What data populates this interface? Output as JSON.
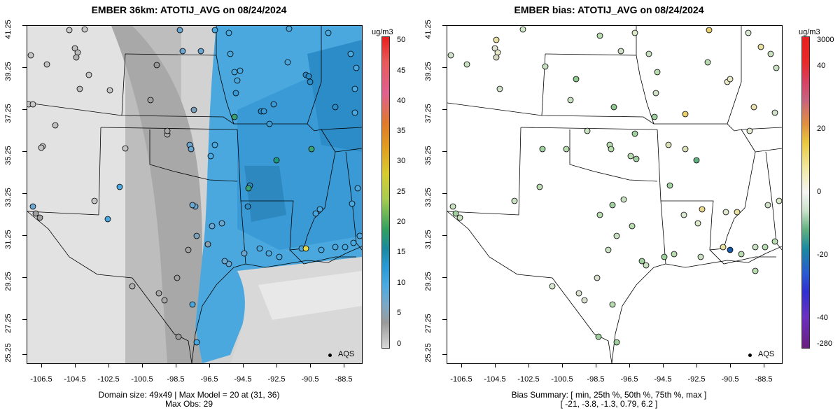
{
  "left": {
    "title": "EMBER 36km: ATOTIJ_AVG on 08/24/2024",
    "xticks": [
      "-106.5",
      "-104.5",
      "-102.5",
      "-100.5",
      "-98.5",
      "-96.5",
      "-94.5",
      "-92.5",
      "-90.5",
      "-88.5"
    ],
    "yticks": [
      "41.25",
      "39.25",
      "37.25",
      "35.25",
      "33.25",
      "31.25",
      "29.25",
      "27.25",
      "25.25"
    ],
    "summary_line1": "Domain size: 49x49 | Max Model = 20 at (31, 36)",
    "summary_line2": "Max Obs: 29",
    "colorbar_unit": "ug/m3",
    "colorbar_labels": [
      "50",
      "45",
      "40",
      "35",
      "30",
      "25",
      "20",
      "15",
      "10",
      "5",
      "0"
    ],
    "legend_label": "AQS"
  },
  "right": {
    "title": "EMBER bias: ATOTIJ_AVG on 08/24/2024",
    "xticks": [
      "-106.5",
      "-104.5",
      "-102.5",
      "-100.5",
      "-98.5",
      "-96.5",
      "-94.5",
      "-92.5",
      "-90.5",
      "-88.5"
    ],
    "yticks": [
      "41.25",
      "39.25",
      "37.25",
      "35.25",
      "33.25",
      "31.25",
      "29.25",
      "27.25",
      "25.25"
    ],
    "summary_line1": "Bias Summary: [ min, 25th %, 50th %, 75th %, max ]",
    "summary_line2": "[ -21,  -3.8,  -1.3,  0.79,  6.2 ]",
    "colorbar_unit": "ug/m3",
    "colorbar_labels": [
      "3000",
      "40",
      "20",
      "0",
      "-20",
      "-40",
      "-280"
    ],
    "legend_label": "AQS"
  },
  "colors": {
    "gray_field": "#c8c8c8",
    "blue_field": "#48aae0",
    "border": "#000000"
  }
}
